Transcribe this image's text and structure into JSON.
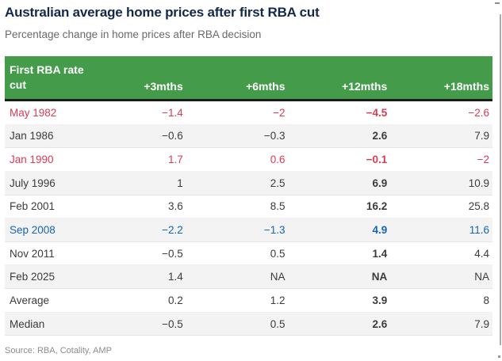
{
  "header": {
    "title": "Australian average home prices after first RBA cut",
    "subtitle": "Percentage change in home prices after RBA decision"
  },
  "table": {
    "first_col_header_line1": "First RBA rate",
    "first_col_header_line2": "cut",
    "month_cols": [
      "+3mths",
      "+6mths",
      "+12mths",
      "+18mths"
    ],
    "rows": [
      {
        "label": "May 1982",
        "values": [
          "−1.4",
          "−2",
          "−4.5",
          "−2.6"
        ],
        "tone": "red"
      },
      {
        "label": "Jan 1986",
        "values": [
          "−0.6",
          "−0.3",
          "2.6",
          "7.9"
        ],
        "tone": "default"
      },
      {
        "label": "Jan 1990",
        "values": [
          "1.7",
          "0.6",
          "−0.1",
          "−2"
        ],
        "tone": "red"
      },
      {
        "label": "July 1996",
        "values": [
          "1",
          "2.5",
          "6.9",
          "10.9"
        ],
        "tone": "default"
      },
      {
        "label": "Feb 2001",
        "values": [
          "3.6",
          "8.5",
          "16.2",
          "25.8"
        ],
        "tone": "default"
      },
      {
        "label": "Sep 2008",
        "values": [
          "−2.2",
          "−1.3",
          "4.9",
          "11.6"
        ],
        "tone": "blue"
      },
      {
        "label": "Nov 2011",
        "values": [
          "−0.5",
          "0.5",
          "1.4",
          "4.4"
        ],
        "tone": "default"
      },
      {
        "label": "Feb 2025",
        "values": [
          "1.4",
          "NA",
          "NA",
          "NA"
        ],
        "tone": "default"
      },
      {
        "label": "Average",
        "values": [
          "0.2",
          "1.2",
          "3.9",
          "8"
        ],
        "tone": "default"
      },
      {
        "label": "Median",
        "values": [
          "−0.5",
          "0.5",
          "2.6",
          "7.9"
        ],
        "tone": "default"
      }
    ]
  },
  "footer": {
    "source": "Source: RBA, Cotality, AMP"
  },
  "colors": {
    "header_green": "#449b4a",
    "negative_red": "#d93a54",
    "gfc_blue": "#1565b4",
    "title_navy": "#13294b"
  },
  "chart_data": {
    "type": "table",
    "title": "Australian average home prices after first RBA cut",
    "subtitle": "Percentage change in home prices after RBA decision",
    "columns": [
      "First RBA rate cut",
      "+3mths",
      "+6mths",
      "+12mths",
      "+18mths"
    ],
    "rows": [
      [
        "May 1982",
        -1.4,
        -2,
        -4.5,
        -2.6
      ],
      [
        "Jan 1986",
        -0.6,
        -0.3,
        2.6,
        7.9
      ],
      [
        "Jan 1990",
        1.7,
        0.6,
        -0.1,
        -2
      ],
      [
        "July 1996",
        1,
        2.5,
        6.9,
        10.9
      ],
      [
        "Feb 2001",
        3.6,
        8.5,
        16.2,
        25.8
      ],
      [
        "Sep 2008",
        -2.2,
        -1.3,
        4.9,
        11.6
      ],
      [
        "Nov 2011",
        -0.5,
        0.5,
        1.4,
        4.4
      ],
      [
        "Feb 2025",
        1.4,
        "NA",
        "NA",
        "NA"
      ],
      [
        "Average",
        0.2,
        1.2,
        3.9,
        8
      ],
      [
        "Median",
        -0.5,
        0.5,
        2.6,
        7.9
      ]
    ],
    "highlighted_rows_red": [
      "May 1982",
      "Jan 1990"
    ],
    "highlighted_row_blue": "Sep 2008",
    "bold_column": "+12mths",
    "source": "Source: RBA, Cotality, AMP"
  }
}
